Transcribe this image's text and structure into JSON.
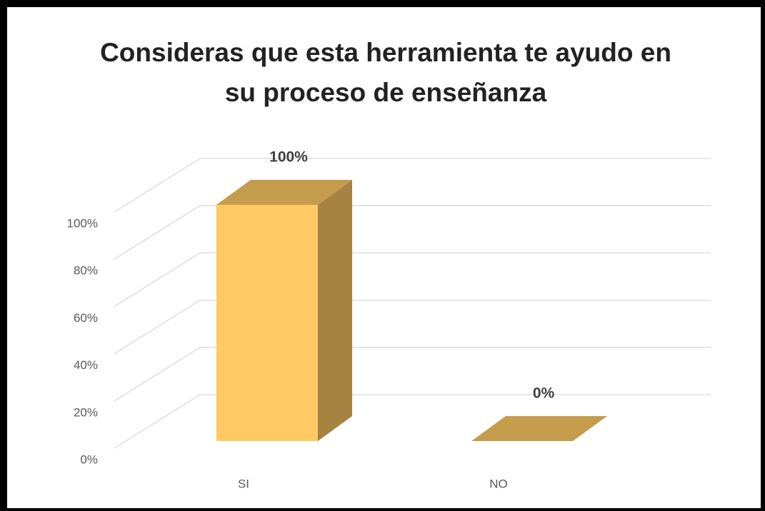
{
  "chart_data": {
    "type": "bar3d",
    "title": "Consideras que esta herramienta te ayudo en su proceso de enseñanza",
    "categories": [
      "SI",
      "NO"
    ],
    "values": [
      100,
      0
    ],
    "value_labels": [
      "100%",
      "0%"
    ],
    "color": "#FFCA63",
    "ylim": [
      0,
      100
    ],
    "yticks": [
      {
        "value": 0,
        "label": "0%"
      },
      {
        "value": 20,
        "label": "20%"
      },
      {
        "value": 40,
        "label": "40%"
      },
      {
        "value": 60,
        "label": "60%"
      },
      {
        "value": 80,
        "label": "80%"
      },
      {
        "value": 100,
        "label": "100%"
      }
    ],
    "grid": true
  }
}
